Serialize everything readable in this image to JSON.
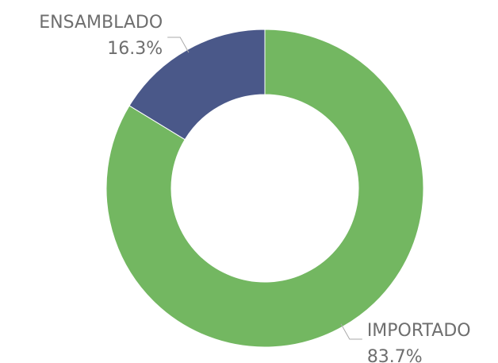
{
  "chart_data": {
    "type": "donut",
    "categories": [
      "IMPORTADO",
      "ENSAMBLADO"
    ],
    "values": [
      83.7,
      16.3
    ],
    "value_labels": [
      "83.7%",
      "16.3%"
    ],
    "colors": [
      "#73b761",
      "#4a5889"
    ]
  }
}
